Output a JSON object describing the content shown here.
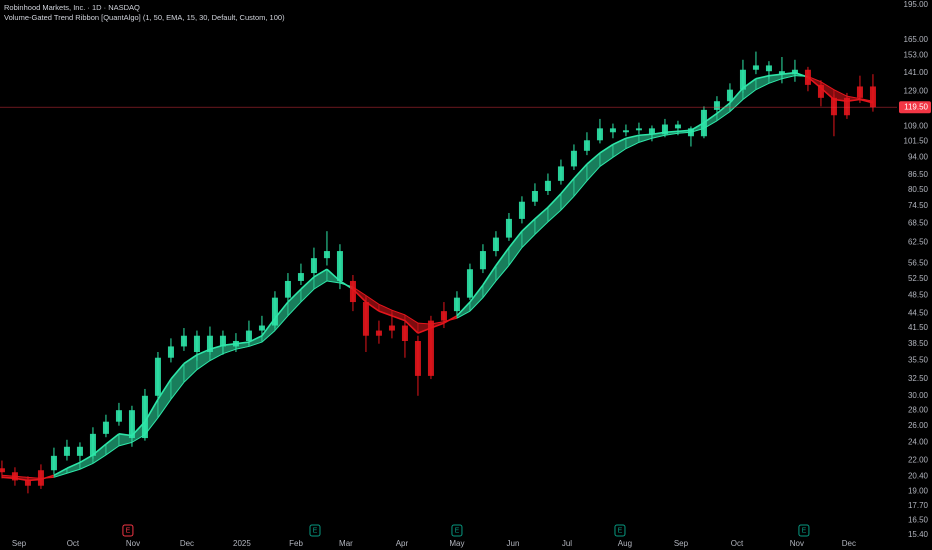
{
  "chart_data": {
    "type": "candlestick",
    "title": "Robinhood Markets, Inc. · 1D · NASDAQ",
    "subtitle": "Volume-Gated Trend Ribbon [QuantAlgo] (1, 50, EMA, 15, 30, Default, Custom, 100)",
    "log_scale": true,
    "grid": false,
    "ylim": [
      15.4,
      195
    ],
    "yticks": [
      {
        "value": 195,
        "label": "195.00"
      },
      {
        "value": 165,
        "label": "165.00"
      },
      {
        "value": 153,
        "label": "153.00"
      },
      {
        "value": 141,
        "label": "141.00"
      },
      {
        "value": 129,
        "label": "129.00"
      },
      {
        "value": 109,
        "label": "109.00"
      },
      {
        "value": 101.5,
        "label": "101.50"
      },
      {
        "value": 94,
        "label": "94.00"
      },
      {
        "value": 86.5,
        "label": "86.50"
      },
      {
        "value": 80.5,
        "label": "80.50"
      },
      {
        "value": 74.5,
        "label": "74.50"
      },
      {
        "value": 68.5,
        "label": "68.50"
      },
      {
        "value": 62.5,
        "label": "62.50"
      },
      {
        "value": 56.5,
        "label": "56.50"
      },
      {
        "value": 52.5,
        "label": "52.50"
      },
      {
        "value": 48.5,
        "label": "48.50"
      },
      {
        "value": 44.5,
        "label": "44.50"
      },
      {
        "value": 41.5,
        "label": "41.50"
      },
      {
        "value": 38.5,
        "label": "38.50"
      },
      {
        "value": 35.5,
        "label": "35.50"
      },
      {
        "value": 32.5,
        "label": "32.50"
      },
      {
        "value": 30,
        "label": "30.00"
      },
      {
        "value": 28,
        "label": "28.00"
      },
      {
        "value": 26,
        "label": "26.00"
      },
      {
        "value": 24,
        "label": "24.00"
      },
      {
        "value": 22,
        "label": "22.00"
      },
      {
        "value": 20.4,
        "label": "20.40"
      },
      {
        "value": 19,
        "label": "19.00"
      },
      {
        "value": 17.7,
        "label": "17.70"
      },
      {
        "value": 16.5,
        "label": "16.50"
      },
      {
        "value": 15.4,
        "label": "15.40"
      }
    ],
    "xlim": [
      -0.15,
      68.85
    ],
    "xticks": [
      {
        "value": 1.31,
        "label": "Sep"
      },
      {
        "value": 5.46,
        "label": "Oct"
      },
      {
        "value": 10.08,
        "label": "Nov"
      },
      {
        "value": 14.23,
        "label": "Dec"
      },
      {
        "value": 18.46,
        "label": "2025"
      },
      {
        "value": 22.62,
        "label": "Feb"
      },
      {
        "value": 26.46,
        "label": "Mar"
      },
      {
        "value": 30.77,
        "label": "Apr"
      },
      {
        "value": 35.0,
        "label": "May"
      },
      {
        "value": 39.31,
        "label": "Jun"
      },
      {
        "value": 43.46,
        "label": "Jul"
      },
      {
        "value": 47.92,
        "label": "Aug"
      },
      {
        "value": 52.23,
        "label": "Sep"
      },
      {
        "value": 56.54,
        "label": "Oct"
      },
      {
        "value": 61.15,
        "label": "Nov"
      },
      {
        "value": 65.15,
        "label": "Dec"
      }
    ],
    "open": [
      21.2,
      20.8,
      20,
      19.5,
      21,
      22.5,
      23.5,
      22.5,
      25,
      26.5,
      28,
      24.5,
      30,
      36,
      38,
      40,
      37,
      40,
      38,
      39,
      41,
      42,
      48,
      52,
      54,
      58,
      60,
      52,
      47,
      40,
      41,
      42,
      39,
      33,
      43,
      45,
      48,
      55,
      60,
      64,
      70,
      76,
      80,
      84,
      90,
      97,
      102,
      108,
      106,
      107,
      108,
      105,
      110,
      108,
      104,
      118,
      123,
      130,
      143,
      146,
      142,
      140,
      143,
      133,
      125,
      115,
      125,
      132
    ],
    "high": [
      22,
      21.3,
      20.4,
      21.6,
      23.4,
      24.3,
      24,
      25.8,
      27.4,
      29,
      28.6,
      31,
      37,
      39.5,
      41.5,
      41,
      41.8,
      41,
      40.5,
      43,
      44,
      49.5,
      54,
      56.5,
      61,
      66,
      62,
      53.5,
      48,
      43,
      44.5,
      43,
      40,
      44,
      47,
      49.5,
      56.5,
      62,
      66,
      72,
      78,
      83,
      87,
      93,
      100,
      106,
      113,
      110.5,
      110,
      111,
      109.5,
      113,
      112,
      109,
      120,
      126,
      134,
      150,
      156,
      149,
      152,
      150,
      145,
      136,
      127,
      128,
      139,
      140
    ],
    "low": [
      20.2,
      19.5,
      18.8,
      19.2,
      20.6,
      22,
      21.8,
      22.2,
      24.6,
      26,
      23.5,
      24.2,
      29.5,
      35.2,
      37.2,
      35.5,
      36.5,
      36.5,
      37,
      38.2,
      40,
      41.5,
      47,
      51,
      53,
      56,
      50,
      45,
      37,
      38.5,
      39.5,
      36,
      30,
      32.5,
      41.5,
      44,
      47.5,
      54,
      58.5,
      63,
      68.5,
      74.5,
      78.5,
      82.5,
      88.5,
      95,
      100.5,
      103,
      104,
      105,
      101.5,
      103.5,
      104.5,
      99,
      103,
      116,
      121,
      128,
      140,
      137,
      134,
      135,
      129,
      120,
      104,
      113,
      122,
      117
    ],
    "close": [
      20.8,
      20,
      19.5,
      21,
      22.5,
      23.5,
      22.5,
      25,
      26.5,
      28,
      24.5,
      30,
      36,
      38,
      40,
      37,
      40,
      38,
      39,
      41,
      42,
      48,
      52,
      54,
      58,
      60,
      52,
      47,
      40,
      41,
      42,
      39,
      33,
      43,
      45,
      48,
      55,
      60,
      64,
      70,
      76,
      80,
      84,
      90,
      97,
      102,
      108,
      106,
      107,
      108,
      105,
      110,
      108,
      104,
      118,
      123,
      130,
      143,
      146,
      142,
      140,
      143,
      133,
      125,
      115,
      125,
      132,
      119.5
    ],
    "last_price": {
      "value": 119.5,
      "label": "119.50"
    },
    "ribbon": {
      "up_color": "#2ee6a8",
      "down_color": "#e3151c",
      "fast": [
        20.3,
        20.2,
        20,
        20.1,
        20.5,
        21.2,
        21.8,
        22.6,
        23.8,
        25,
        24.8,
        26.5,
        29.5,
        32.5,
        35,
        36.5,
        37.5,
        38.2,
        38.5,
        38.8,
        40,
        43.5,
        47,
        50,
        53,
        55,
        52,
        50,
        47,
        45,
        44,
        43,
        40.5,
        41.5,
        42.5,
        44,
        47,
        51,
        56,
        61,
        66,
        70,
        74,
        79,
        85,
        91,
        96,
        100,
        103,
        104.5,
        105,
        106,
        106.5,
        107,
        111,
        116,
        122,
        131,
        137,
        139,
        140,
        141,
        138,
        131,
        124,
        123,
        124,
        122
      ],
      "slow": [
        20.5,
        20.4,
        20.3,
        20.2,
        20.3,
        20.7,
        21.1,
        21.7,
        22.6,
        23.6,
        24,
        24.9,
        27,
        29.5,
        32,
        34,
        35.5,
        36.7,
        37.5,
        38,
        38.8,
        41,
        44,
        47,
        50,
        52,
        51.5,
        50.5,
        48.5,
        46.5,
        45.2,
        44.2,
        42.5,
        42.3,
        42.8,
        43.5,
        45,
        48,
        52,
        56,
        61,
        65,
        69,
        73,
        78,
        84,
        90,
        94,
        98,
        101,
        103,
        104.5,
        105.5,
        106,
        108,
        112,
        117,
        124,
        130,
        134,
        137,
        139,
        138.5,
        135,
        130,
        126,
        124.5,
        123
      ]
    },
    "events": [
      {
        "x": 9.69,
        "label": "E",
        "color": "#f23645"
      },
      {
        "x": 24.08,
        "label": "E",
        "color": "#089981"
      },
      {
        "x": 35.0,
        "label": "E",
        "color": "#089981"
      },
      {
        "x": 47.54,
        "label": "E",
        "color": "#089981"
      },
      {
        "x": 61.69,
        "label": "E",
        "color": "#089981"
      }
    ]
  }
}
